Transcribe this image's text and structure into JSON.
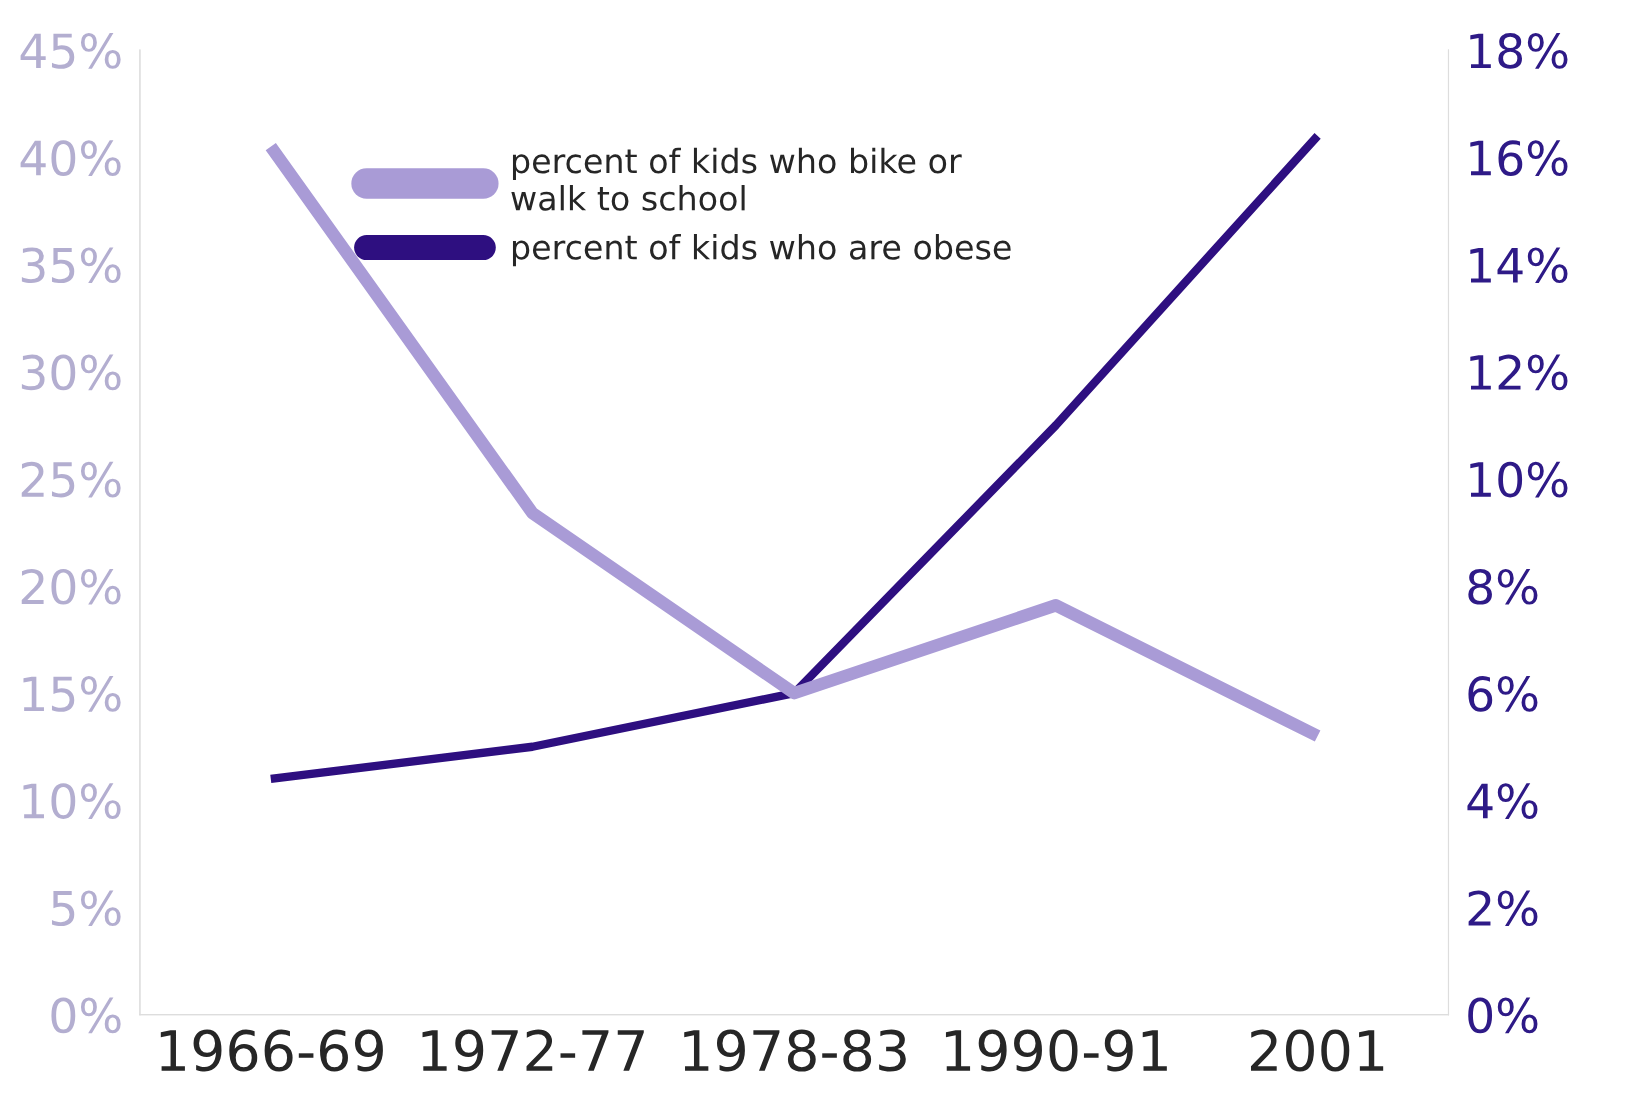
{
  "chart_data": {
    "type": "line",
    "categories": [
      "1966-69",
      "1972-77",
      "1978-83",
      "1990-91",
      "2001"
    ],
    "series": [
      {
        "name": "percent of kids who bike or\nwalk to school",
        "color": "#a99bd6",
        "values": [
          40.5,
          23.4,
          15.0,
          19.1,
          13.0
        ]
      },
      {
        "name": "percent of kids who are obese",
        "color": "#2e0f80",
        "axis": "y2",
        "values": [
          4.4,
          5.0,
          6.0,
          11.0,
          16.4
        ]
      }
    ],
    "ylim": [
      0,
      45
    ],
    "yticks": [
      {
        "value": 0,
        "label": "0%"
      },
      {
        "value": 5,
        "label": "5%"
      },
      {
        "value": 10,
        "label": "10%"
      },
      {
        "value": 15,
        "label": "15%"
      },
      {
        "value": 20,
        "label": "20%"
      },
      {
        "value": 25,
        "label": "25%"
      },
      {
        "value": 30,
        "label": "30%"
      },
      {
        "value": 35,
        "label": "35%"
      },
      {
        "value": 40,
        "label": "40%"
      },
      {
        "value": 45,
        "label": "45%"
      }
    ],
    "y2lim": [
      0,
      18
    ],
    "y2ticks": [
      {
        "value": 0,
        "label": "0%"
      },
      {
        "value": 2,
        "label": "2%"
      },
      {
        "value": 4,
        "label": "4%"
      },
      {
        "value": 6,
        "label": "6%"
      },
      {
        "value": 8,
        "label": "8%"
      },
      {
        "value": 10,
        "label": "10%"
      },
      {
        "value": 12,
        "label": "12%"
      },
      {
        "value": 14,
        "label": "14%"
      },
      {
        "value": 16,
        "label": "16%"
      },
      {
        "value": 18,
        "label": "18%"
      }
    ],
    "grid": false,
    "legend": "top"
  }
}
